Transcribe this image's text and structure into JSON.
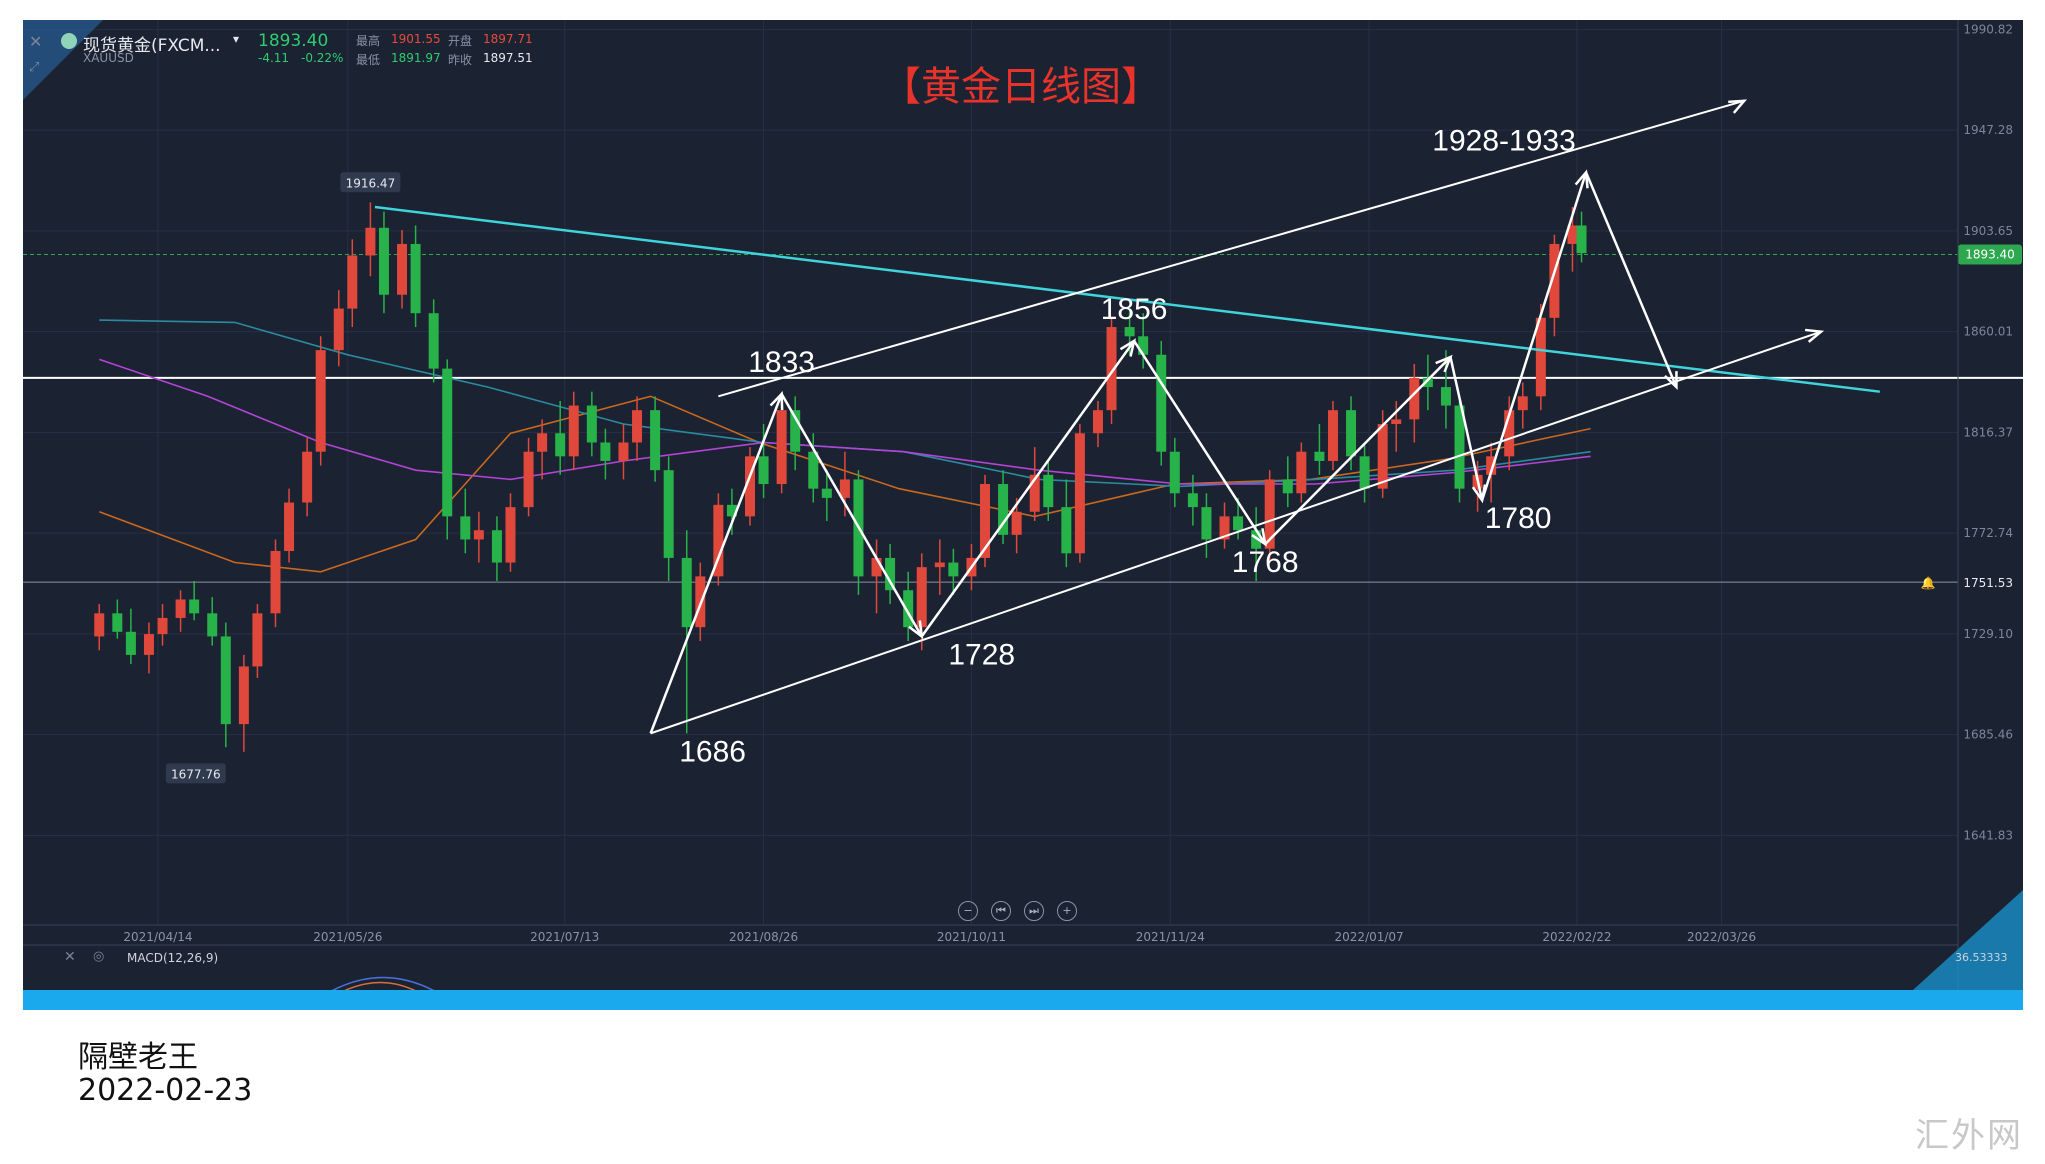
{
  "header": {
    "symbol_name": "现货黄金(FXCM...",
    "symbol_code": "XAUUSD",
    "price": "1893.40",
    "change": "-4.11",
    "change_pct": "-0.22%",
    "high_label": "最高",
    "high": "1901.55",
    "open_label": "开盘",
    "open": "1897.71",
    "low_label": "最低",
    "low": "1891.97",
    "prev_label": "昨收",
    "prev": "1897.51"
  },
  "indicator": {
    "label": "MACD(12,26,9)",
    "macd_value": "36.53333"
  },
  "caption": {
    "author": "隔壁老王",
    "date": "2022-02-23"
  },
  "watermark": "汇外网",
  "colors": {
    "background": "#1b2231",
    "up": "#e0483c",
    "down": "#27b34a",
    "trendline": "#3fd4dc",
    "annotation": "#ffffff",
    "title": "#e8332a",
    "price_tag": "#2ea84f",
    "ma_orange": "#c8681f",
    "ma_purple": "#b344d6",
    "ma_teal": "#2c8aa0"
  },
  "chart_data": {
    "type": "candlestick",
    "title": "【黄金日线图】",
    "x_ticks": [
      "2021/04/14",
      "2021/05/26",
      "2021/07/13",
      "2021/08/26",
      "2021/10/11",
      "2021/11/24",
      "2022/01/07",
      "2022/02/22",
      "2022/03/26"
    ],
    "y_ticks": [
      "1990.82",
      "1947.28",
      "1903.65",
      "1860.01",
      "1816.37",
      "1772.74",
      "1729.10",
      "1685.46",
      "1641.83"
    ],
    "ylim": [
      1603,
      1995
    ],
    "current_price": "1893.40",
    "marker_line": "1751.53",
    "horizontal_level": 1840,
    "high_label": "1916.47",
    "low_label": "1677.76",
    "annotations": [
      "1686",
      "1728",
      "1768",
      "1780",
      "1833",
      "1856",
      "1928-1933"
    ],
    "zigzag": [
      {
        "date": "2021-08-01",
        "price": 1686
      },
      {
        "date": "2021-08-30",
        "price": 1833
      },
      {
        "date": "2021-09-30",
        "price": 1728
      },
      {
        "date": "2021-11-16",
        "price": 1856
      },
      {
        "date": "2021-12-15",
        "price": 1768
      },
      {
        "date": "2022-01-25",
        "price": 1849
      },
      {
        "date": "2022-02-01",
        "price": 1787
      },
      {
        "date": "2022-02-24",
        "price": 1929
      },
      {
        "date": "2022-03-16",
        "price": 1836
      }
    ],
    "channel_upper": [
      {
        "date": "2021-08-16",
        "price": 1832
      },
      {
        "date": "2022-03-31",
        "price": 1960
      }
    ],
    "channel_lower": [
      {
        "date": "2021-08-01",
        "price": 1686
      },
      {
        "date": "2022-04-17",
        "price": 1860
      }
    ],
    "downtrend": [
      {
        "date": "2021-06-01",
        "price": 1914
      },
      {
        "date": "2022-04-30",
        "price": 1834
      }
    ],
    "candles": [
      {
        "date": "2021-04-01",
        "o": 1728,
        "h": 1742,
        "l": 1722,
        "c": 1738
      },
      {
        "date": "2021-04-05",
        "o": 1738,
        "h": 1744,
        "l": 1727,
        "c": 1730
      },
      {
        "date": "2021-04-08",
        "o": 1730,
        "h": 1740,
        "l": 1716,
        "c": 1720
      },
      {
        "date": "2021-04-12",
        "o": 1720,
        "h": 1734,
        "l": 1712,
        "c": 1729
      },
      {
        "date": "2021-04-15",
        "o": 1729,
        "h": 1742,
        "l": 1724,
        "c": 1736
      },
      {
        "date": "2021-04-19",
        "o": 1736,
        "h": 1748,
        "l": 1730,
        "c": 1744
      },
      {
        "date": "2021-04-22",
        "o": 1744,
        "h": 1752,
        "l": 1735,
        "c": 1738
      },
      {
        "date": "2021-04-26",
        "o": 1738,
        "h": 1745,
        "l": 1724,
        "c": 1728
      },
      {
        "date": "2021-04-29",
        "o": 1728,
        "h": 1734,
        "l": 1680,
        "c": 1690
      },
      {
        "date": "2021-05-03",
        "o": 1690,
        "h": 1720,
        "l": 1678,
        "c": 1715
      },
      {
        "date": "2021-05-06",
        "o": 1715,
        "h": 1742,
        "l": 1710,
        "c": 1738
      },
      {
        "date": "2021-05-10",
        "o": 1738,
        "h": 1770,
        "l": 1732,
        "c": 1765
      },
      {
        "date": "2021-05-13",
        "o": 1765,
        "h": 1792,
        "l": 1760,
        "c": 1786
      },
      {
        "date": "2021-05-17",
        "o": 1786,
        "h": 1814,
        "l": 1780,
        "c": 1808
      },
      {
        "date": "2021-05-20",
        "o": 1808,
        "h": 1858,
        "l": 1802,
        "c": 1852
      },
      {
        "date": "2021-05-24",
        "o": 1852,
        "h": 1878,
        "l": 1845,
        "c": 1870
      },
      {
        "date": "2021-05-27",
        "o": 1870,
        "h": 1900,
        "l": 1862,
        "c": 1893
      },
      {
        "date": "2021-05-31",
        "o": 1893,
        "h": 1916,
        "l": 1884,
        "c": 1905
      },
      {
        "date": "2021-06-03",
        "o": 1905,
        "h": 1912,
        "l": 1868,
        "c": 1876
      },
      {
        "date": "2021-06-07",
        "o": 1876,
        "h": 1904,
        "l": 1870,
        "c": 1898
      },
      {
        "date": "2021-06-10",
        "o": 1898,
        "h": 1906,
        "l": 1862,
        "c": 1868
      },
      {
        "date": "2021-06-14",
        "o": 1868,
        "h": 1874,
        "l": 1838,
        "c": 1844
      },
      {
        "date": "2021-06-17",
        "o": 1844,
        "h": 1848,
        "l": 1770,
        "c": 1780
      },
      {
        "date": "2021-06-21",
        "o": 1780,
        "h": 1792,
        "l": 1764,
        "c": 1770
      },
      {
        "date": "2021-06-24",
        "o": 1770,
        "h": 1782,
        "l": 1760,
        "c": 1774
      },
      {
        "date": "2021-06-28",
        "o": 1774,
        "h": 1780,
        "l": 1752,
        "c": 1760
      },
      {
        "date": "2021-07-01",
        "o": 1760,
        "h": 1790,
        "l": 1756,
        "c": 1784
      },
      {
        "date": "2021-07-05",
        "o": 1784,
        "h": 1814,
        "l": 1780,
        "c": 1808
      },
      {
        "date": "2021-07-08",
        "o": 1808,
        "h": 1822,
        "l": 1796,
        "c": 1816
      },
      {
        "date": "2021-07-12",
        "o": 1816,
        "h": 1830,
        "l": 1798,
        "c": 1806
      },
      {
        "date": "2021-07-15",
        "o": 1806,
        "h": 1834,
        "l": 1800,
        "c": 1828
      },
      {
        "date": "2021-07-19",
        "o": 1828,
        "h": 1834,
        "l": 1806,
        "c": 1812
      },
      {
        "date": "2021-07-22",
        "o": 1812,
        "h": 1818,
        "l": 1796,
        "c": 1804
      },
      {
        "date": "2021-07-26",
        "o": 1804,
        "h": 1820,
        "l": 1796,
        "c": 1812
      },
      {
        "date": "2021-07-29",
        "o": 1812,
        "h": 1832,
        "l": 1804,
        "c": 1826
      },
      {
        "date": "2021-08-02",
        "o": 1826,
        "h": 1832,
        "l": 1795,
        "c": 1800
      },
      {
        "date": "2021-08-05",
        "o": 1800,
        "h": 1806,
        "l": 1752,
        "c": 1762
      },
      {
        "date": "2021-08-09",
        "o": 1762,
        "h": 1774,
        "l": 1686,
        "c": 1732
      },
      {
        "date": "2021-08-12",
        "o": 1732,
        "h": 1760,
        "l": 1726,
        "c": 1754
      },
      {
        "date": "2021-08-16",
        "o": 1754,
        "h": 1790,
        "l": 1750,
        "c": 1785
      },
      {
        "date": "2021-08-19",
        "o": 1785,
        "h": 1792,
        "l": 1772,
        "c": 1780
      },
      {
        "date": "2021-08-23",
        "o": 1780,
        "h": 1810,
        "l": 1776,
        "c": 1806
      },
      {
        "date": "2021-08-26",
        "o": 1806,
        "h": 1820,
        "l": 1788,
        "c": 1794
      },
      {
        "date": "2021-08-30",
        "o": 1794,
        "h": 1834,
        "l": 1790,
        "c": 1826
      },
      {
        "date": "2021-09-02",
        "o": 1826,
        "h": 1832,
        "l": 1800,
        "c": 1808
      },
      {
        "date": "2021-09-06",
        "o": 1808,
        "h": 1816,
        "l": 1786,
        "c": 1792
      },
      {
        "date": "2021-09-09",
        "o": 1792,
        "h": 1800,
        "l": 1778,
        "c": 1788
      },
      {
        "date": "2021-09-13",
        "o": 1788,
        "h": 1808,
        "l": 1780,
        "c": 1796
      },
      {
        "date": "2021-09-16",
        "o": 1796,
        "h": 1800,
        "l": 1746,
        "c": 1754
      },
      {
        "date": "2021-09-20",
        "o": 1754,
        "h": 1770,
        "l": 1738,
        "c": 1762
      },
      {
        "date": "2021-09-23",
        "o": 1762,
        "h": 1768,
        "l": 1742,
        "c": 1748
      },
      {
        "date": "2021-09-27",
        "o": 1748,
        "h": 1756,
        "l": 1726,
        "c": 1732
      },
      {
        "date": "2021-09-30",
        "o": 1732,
        "h": 1764,
        "l": 1722,
        "c": 1758
      },
      {
        "date": "2021-10-04",
        "o": 1758,
        "h": 1770,
        "l": 1746,
        "c": 1760
      },
      {
        "date": "2021-10-07",
        "o": 1760,
        "h": 1766,
        "l": 1746,
        "c": 1754
      },
      {
        "date": "2021-10-11",
        "o": 1754,
        "h": 1768,
        "l": 1748,
        "c": 1762
      },
      {
        "date": "2021-10-14",
        "o": 1762,
        "h": 1798,
        "l": 1758,
        "c": 1794
      },
      {
        "date": "2021-10-18",
        "o": 1794,
        "h": 1800,
        "l": 1768,
        "c": 1772
      },
      {
        "date": "2021-10-21",
        "o": 1772,
        "h": 1788,
        "l": 1764,
        "c": 1782
      },
      {
        "date": "2021-10-25",
        "o": 1782,
        "h": 1810,
        "l": 1778,
        "c": 1798
      },
      {
        "date": "2021-10-28",
        "o": 1798,
        "h": 1804,
        "l": 1778,
        "c": 1784
      },
      {
        "date": "2021-11-01",
        "o": 1784,
        "h": 1796,
        "l": 1758,
        "c": 1764
      },
      {
        "date": "2021-11-04",
        "o": 1764,
        "h": 1820,
        "l": 1760,
        "c": 1816
      },
      {
        "date": "2021-11-08",
        "o": 1816,
        "h": 1830,
        "l": 1810,
        "c": 1826
      },
      {
        "date": "2021-11-11",
        "o": 1826,
        "h": 1866,
        "l": 1820,
        "c": 1862
      },
      {
        "date": "2021-11-15",
        "o": 1862,
        "h": 1870,
        "l": 1850,
        "c": 1858
      },
      {
        "date": "2021-11-18",
        "o": 1858,
        "h": 1868,
        "l": 1844,
        "c": 1850
      },
      {
        "date": "2021-11-22",
        "o": 1850,
        "h": 1856,
        "l": 1802,
        "c": 1808
      },
      {
        "date": "2021-11-25",
        "o": 1808,
        "h": 1814,
        "l": 1784,
        "c": 1790
      },
      {
        "date": "2021-11-29",
        "o": 1790,
        "h": 1798,
        "l": 1776,
        "c": 1784
      },
      {
        "date": "2021-12-02",
        "o": 1784,
        "h": 1790,
        "l": 1762,
        "c": 1770
      },
      {
        "date": "2021-12-06",
        "o": 1770,
        "h": 1786,
        "l": 1766,
        "c": 1780
      },
      {
        "date": "2021-12-09",
        "o": 1780,
        "h": 1788,
        "l": 1770,
        "c": 1774
      },
      {
        "date": "2021-12-13",
        "o": 1774,
        "h": 1784,
        "l": 1752,
        "c": 1766
      },
      {
        "date": "2021-12-16",
        "o": 1766,
        "h": 1800,
        "l": 1760,
        "c": 1796
      },
      {
        "date": "2021-12-20",
        "o": 1796,
        "h": 1806,
        "l": 1784,
        "c": 1790
      },
      {
        "date": "2021-12-23",
        "o": 1790,
        "h": 1812,
        "l": 1786,
        "c": 1808
      },
      {
        "date": "2021-12-27",
        "o": 1808,
        "h": 1820,
        "l": 1798,
        "c": 1804
      },
      {
        "date": "2021-12-30",
        "o": 1804,
        "h": 1830,
        "l": 1800,
        "c": 1826
      },
      {
        "date": "2022-01-03",
        "o": 1826,
        "h": 1832,
        "l": 1800,
        "c": 1806
      },
      {
        "date": "2022-01-06",
        "o": 1806,
        "h": 1812,
        "l": 1786,
        "c": 1792
      },
      {
        "date": "2022-01-10",
        "o": 1792,
        "h": 1826,
        "l": 1788,
        "c": 1820
      },
      {
        "date": "2022-01-13",
        "o": 1820,
        "h": 1830,
        "l": 1808,
        "c": 1822
      },
      {
        "date": "2022-01-17",
        "o": 1822,
        "h": 1846,
        "l": 1812,
        "c": 1840
      },
      {
        "date": "2022-01-20",
        "o": 1840,
        "h": 1850,
        "l": 1826,
        "c": 1836
      },
      {
        "date": "2022-01-24",
        "o": 1836,
        "h": 1852,
        "l": 1818,
        "c": 1828
      },
      {
        "date": "2022-01-27",
        "o": 1828,
        "h": 1832,
        "l": 1786,
        "c": 1792
      },
      {
        "date": "2022-01-31",
        "o": 1792,
        "h": 1804,
        "l": 1782,
        "c": 1798
      },
      {
        "date": "2022-02-03",
        "o": 1798,
        "h": 1812,
        "l": 1786,
        "c": 1806
      },
      {
        "date": "2022-02-07",
        "o": 1806,
        "h": 1832,
        "l": 1800,
        "c": 1826
      },
      {
        "date": "2022-02-10",
        "o": 1826,
        "h": 1838,
        "l": 1818,
        "c": 1832
      },
      {
        "date": "2022-02-14",
        "o": 1832,
        "h": 1872,
        "l": 1826,
        "c": 1866
      },
      {
        "date": "2022-02-17",
        "o": 1866,
        "h": 1902,
        "l": 1858,
        "c": 1898
      },
      {
        "date": "2022-02-21",
        "o": 1898,
        "h": 1914,
        "l": 1886,
        "c": 1906
      },
      {
        "date": "2022-02-23",
        "o": 1906,
        "h": 1912,
        "l": 1890,
        "c": 1894
      }
    ],
    "moving_averages": [
      {
        "name": "orange",
        "points": [
          {
            "date": "2021-04-01",
            "v": 1782
          },
          {
            "date": "2021-05-01",
            "v": 1760
          },
          {
            "date": "2021-05-20",
            "v": 1756
          },
          {
            "date": "2021-06-10",
            "v": 1770
          },
          {
            "date": "2021-07-01",
            "v": 1816
          },
          {
            "date": "2021-08-01",
            "v": 1832
          },
          {
            "date": "2021-08-25",
            "v": 1812
          },
          {
            "date": "2021-09-25",
            "v": 1792
          },
          {
            "date": "2021-10-25",
            "v": 1780
          },
          {
            "date": "2021-11-25",
            "v": 1794
          },
          {
            "date": "2021-12-25",
            "v": 1796
          },
          {
            "date": "2022-01-25",
            "v": 1805
          },
          {
            "date": "2022-02-25",
            "v": 1818
          }
        ]
      },
      {
        "name": "teal",
        "points": [
          {
            "date": "2021-04-01",
            "v": 1865
          },
          {
            "date": "2021-05-01",
            "v": 1864
          },
          {
            "date": "2021-05-26",
            "v": 1850
          },
          {
            "date": "2021-06-26",
            "v": 1836
          },
          {
            "date": "2021-07-26",
            "v": 1820
          },
          {
            "date": "2021-08-26",
            "v": 1812
          },
          {
            "date": "2021-09-26",
            "v": 1808
          },
          {
            "date": "2021-10-26",
            "v": 1796
          },
          {
            "date": "2021-11-26",
            "v": 1793
          },
          {
            "date": "2021-12-26",
            "v": 1796
          },
          {
            "date": "2022-01-26",
            "v": 1800
          },
          {
            "date": "2022-02-25",
            "v": 1808
          }
        ]
      },
      {
        "name": "purple",
        "points": [
          {
            "date": "2021-04-01",
            "v": 1848
          },
          {
            "date": "2021-04-25",
            "v": 1832
          },
          {
            "date": "2021-05-20",
            "v": 1812
          },
          {
            "date": "2021-06-10",
            "v": 1800
          },
          {
            "date": "2021-07-01",
            "v": 1796
          },
          {
            "date": "2021-07-26",
            "v": 1804
          },
          {
            "date": "2021-08-26",
            "v": 1812
          },
          {
            "date": "2021-09-26",
            "v": 1808
          },
          {
            "date": "2021-10-26",
            "v": 1800
          },
          {
            "date": "2021-11-26",
            "v": 1794
          },
          {
            "date": "2021-12-26",
            "v": 1794
          },
          {
            "date": "2022-01-26",
            "v": 1799
          },
          {
            "date": "2022-02-25",
            "v": 1806
          }
        ]
      }
    ]
  }
}
